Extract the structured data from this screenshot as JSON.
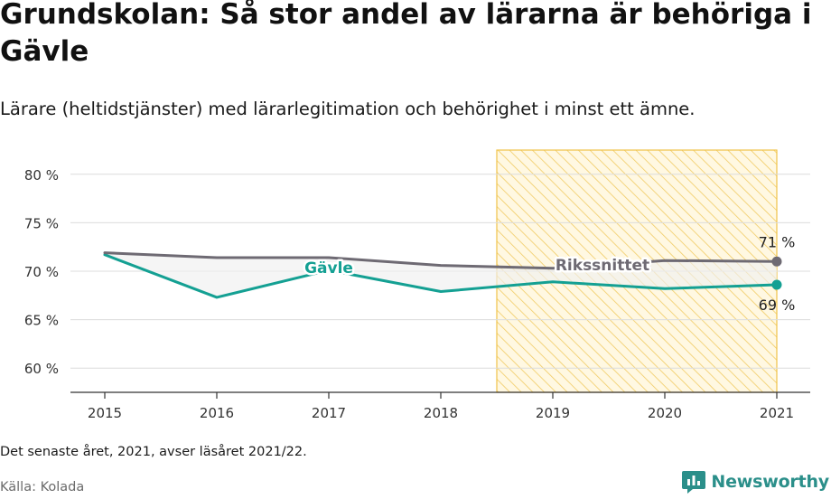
{
  "header": {
    "title": "Grundskolan: Så stor andel av lärarna är behöriga i Gävle",
    "subtitle": "Lärare (heltidstjänster) med lärarlegitimation och behörighet i minst ett ämne."
  },
  "footer": {
    "note": "Det senaste året, 2021, avser läsåret 2021/22.",
    "source": "Källa: Kolada",
    "brand": "Newsworthy",
    "brand_icon": "bar-chart-logo-icon"
  },
  "colors": {
    "gavle": "#14a093",
    "riks": "#6e6a73",
    "highlight_stroke": "#f0c34a",
    "highlight_fill": "#fff6dc",
    "brand": "#2b8f8a"
  },
  "chart_data": {
    "type": "line",
    "x": [
      2015,
      2016,
      2017,
      2018,
      2019,
      2020,
      2021
    ],
    "xtick_labels": [
      "2015",
      "2016",
      "2017",
      "2018",
      "2019",
      "2020",
      "2021"
    ],
    "ylim": [
      57.5,
      82.5
    ],
    "yticks": [
      60,
      65,
      70,
      75,
      80
    ],
    "ytick_labels": [
      "60 %",
      "65 %",
      "70 %",
      "75 %",
      "80 %"
    ],
    "grid": true,
    "highlight": {
      "from": 2018.5,
      "to": 2021
    },
    "series": [
      {
        "name": "Gävle",
        "key": "gavle",
        "values": [
          71.7,
          67.3,
          70.1,
          67.9,
          68.9,
          68.2,
          68.6
        ],
        "end_label": "69 %",
        "label_x": 2017
      },
      {
        "name": "Rikssnittet",
        "key": "riks",
        "values": [
          71.9,
          71.4,
          71.4,
          70.6,
          70.3,
          71.1,
          71.0
        ],
        "end_label": "71 %",
        "label_x": 2019
      }
    ]
  }
}
